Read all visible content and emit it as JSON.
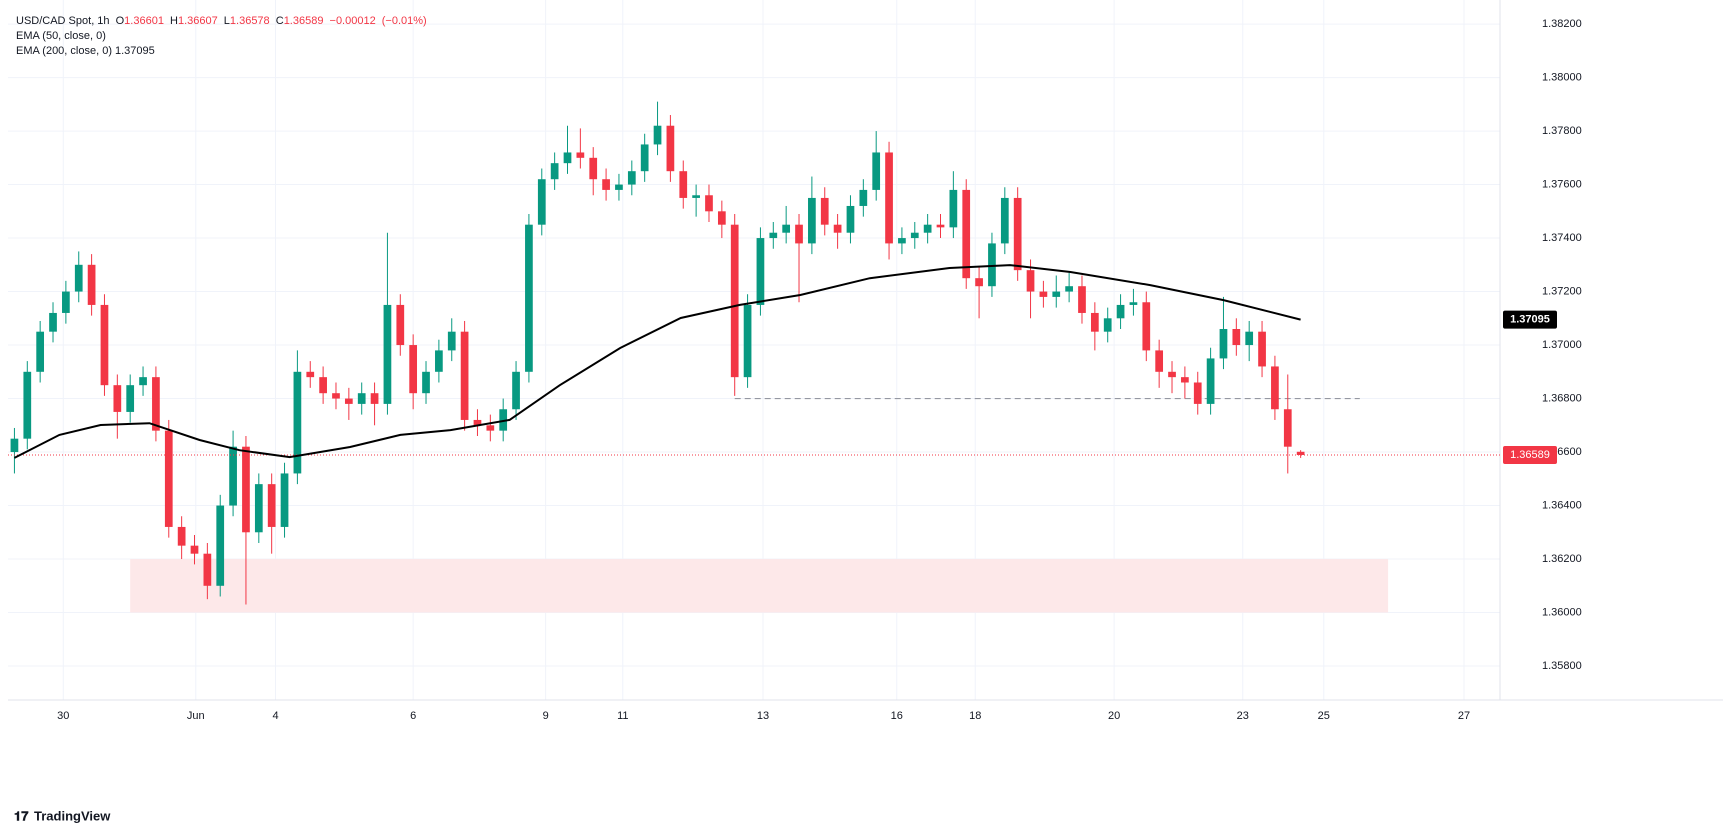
{
  "chart_data": {
    "type": "candlestick",
    "symbol": "USD/CAD Spot, 1h",
    "ohlc_labels": [
      "O",
      "H",
      "L",
      "C"
    ],
    "change": {
      "value": -0.00012,
      "label": "−0.00012"
    },
    "change_percent": {
      "value": -0.01,
      "label": "(−0.01%)"
    },
    "up_color": "#089981",
    "down_color": "#f23645",
    "open": [
      1.366,
      1.3665,
      1.369,
      1.3705,
      1.3712,
      1.372,
      1.373,
      1.3715,
      1.3685,
      1.3675,
      1.3685,
      1.3688,
      1.3668,
      1.3632,
      1.3625,
      1.3622,
      1.361,
      1.364,
      1.3662,
      1.363,
      1.3648,
      1.3632,
      1.3652,
      1.369,
      1.3688,
      1.3682,
      1.368,
      1.3678,
      1.3682,
      1.3678,
      1.3715,
      1.37,
      1.3682,
      1.369,
      1.3698,
      1.3705,
      1.3672,
      1.367,
      1.3668,
      1.3676,
      1.369,
      1.3745,
      1.3762,
      1.3768,
      1.3772,
      1.377,
      1.3762,
      1.3758,
      1.376,
      1.3765,
      1.3775,
      1.3782,
      1.3765,
      1.3755,
      1.3756,
      1.375,
      1.3745,
      1.3688,
      1.3715,
      1.374,
      1.3742,
      1.3745,
      1.3738,
      1.3755,
      1.3745,
      1.3742,
      1.3752,
      1.3758,
      1.3772,
      1.3738,
      1.374,
      1.3742,
      1.3745,
      1.3744,
      1.3758,
      1.3725,
      1.3722,
      1.3738,
      1.3755,
      1.3728,
      1.372,
      1.3718,
      1.372,
      1.3722,
      1.3712,
      1.3705,
      1.371,
      1.3715,
      1.3716,
      1.3698,
      1.369,
      1.3688,
      1.3686,
      1.3678,
      1.3695,
      1.3706,
      1.37,
      1.3705,
      1.3692,
      1.3676,
      1.36601
    ],
    "high": [
      1.3669,
      1.3694,
      1.3709,
      1.3716,
      1.3724,
      1.3735,
      1.3734,
      1.3719,
      1.3689,
      1.3689,
      1.3692,
      1.3692,
      1.3672,
      1.3636,
      1.3629,
      1.3626,
      1.3644,
      1.3668,
      1.3666,
      1.3652,
      1.3652,
      1.3656,
      1.3698,
      1.3694,
      1.3692,
      1.3686,
      1.3684,
      1.3686,
      1.3686,
      1.3742,
      1.3719,
      1.3704,
      1.3694,
      1.3702,
      1.371,
      1.3709,
      1.3676,
      1.3674,
      1.368,
      1.3694,
      1.3749,
      1.3766,
      1.3772,
      1.3782,
      1.3781,
      1.3774,
      1.3766,
      1.3764,
      1.3769,
      1.3779,
      1.3791,
      1.3786,
      1.3769,
      1.376,
      1.376,
      1.3754,
      1.3749,
      1.3719,
      1.3744,
      1.3746,
      1.3752,
      1.3749,
      1.3763,
      1.3759,
      1.3749,
      1.3756,
      1.3762,
      1.378,
      1.3776,
      1.3744,
      1.3746,
      1.3749,
      1.3749,
      1.3765,
      1.3762,
      1.3729,
      1.3742,
      1.3759,
      1.3759,
      1.3732,
      1.3724,
      1.3726,
      1.3727,
      1.3726,
      1.3716,
      1.3714,
      1.3719,
      1.3721,
      1.372,
      1.3702,
      1.3694,
      1.3692,
      1.369,
      1.3699,
      1.3718,
      1.371,
      1.3709,
      1.3709,
      1.3696,
      1.3689,
      1.36607
    ],
    "low": [
      1.3652,
      1.3661,
      1.3686,
      1.3701,
      1.3708,
      1.3716,
      1.3711,
      1.3681,
      1.3665,
      1.3671,
      1.3681,
      1.3664,
      1.3628,
      1.362,
      1.3618,
      1.3605,
      1.3606,
      1.3636,
      1.3603,
      1.3626,
      1.3622,
      1.3628,
      1.3648,
      1.3684,
      1.3678,
      1.3676,
      1.3672,
      1.3674,
      1.367,
      1.3674,
      1.3696,
      1.3676,
      1.3678,
      1.3686,
      1.3694,
      1.3668,
      1.3666,
      1.3664,
      1.3664,
      1.3672,
      1.3686,
      1.3741,
      1.3758,
      1.3764,
      1.3766,
      1.3756,
      1.3754,
      1.3754,
      1.3756,
      1.3761,
      1.3771,
      1.3761,
      1.3751,
      1.3748,
      1.3746,
      1.374,
      1.3681,
      1.3684,
      1.3711,
      1.3736,
      1.3738,
      1.3716,
      1.3734,
      1.3741,
      1.3736,
      1.3738,
      1.3748,
      1.3754,
      1.3732,
      1.3734,
      1.3736,
      1.3738,
      1.374,
      1.374,
      1.3721,
      1.371,
      1.3718,
      1.3734,
      1.3724,
      1.371,
      1.3714,
      1.3714,
      1.3716,
      1.3708,
      1.3698,
      1.3701,
      1.3706,
      1.3711,
      1.3694,
      1.3684,
      1.3682,
      1.368,
      1.3674,
      1.3674,
      1.3691,
      1.3696,
      1.3694,
      1.3688,
      1.3672,
      1.3652,
      1.36578
    ],
    "close": [
      1.3665,
      1.369,
      1.3705,
      1.3712,
      1.372,
      1.373,
      1.3715,
      1.3685,
      1.3675,
      1.3685,
      1.3688,
      1.3668,
      1.3632,
      1.3625,
      1.3622,
      1.361,
      1.364,
      1.3662,
      1.363,
      1.3648,
      1.3632,
      1.3652,
      1.369,
      1.3688,
      1.3682,
      1.368,
      1.3678,
      1.3682,
      1.3678,
      1.3715,
      1.37,
      1.3682,
      1.369,
      1.3698,
      1.3705,
      1.3672,
      1.367,
      1.3668,
      1.3676,
      1.369,
      1.3745,
      1.3762,
      1.3768,
      1.3772,
      1.377,
      1.3762,
      1.3758,
      1.376,
      1.3765,
      1.3775,
      1.3782,
      1.3765,
      1.3755,
      1.3756,
      1.375,
      1.3745,
      1.3688,
      1.3715,
      1.374,
      1.3742,
      1.3745,
      1.3738,
      1.3755,
      1.3745,
      1.3742,
      1.3752,
      1.3758,
      1.3772,
      1.3738,
      1.374,
      1.3742,
      1.3745,
      1.3744,
      1.3758,
      1.3725,
      1.3722,
      1.3738,
      1.3755,
      1.3728,
      1.372,
      1.3718,
      1.372,
      1.3722,
      1.3712,
      1.3705,
      1.371,
      1.3715,
      1.3716,
      1.3698,
      1.369,
      1.3688,
      1.3686,
      1.3678,
      1.3695,
      1.3706,
      1.37,
      1.3705,
      1.3692,
      1.3676,
      1.3662,
      1.36589
    ],
    "ema_50": {
      "name": "EMA (50, close, 0)"
    },
    "ema_200": {
      "name": "EMA (200, close, 0)",
      "color": "#000000",
      "x": [
        0,
        3.5,
        6.7,
        10.5,
        14.4,
        17.5,
        21.4,
        26.1,
        30.0,
        33.9,
        38.5,
        42.4,
        47.1,
        51.8,
        56.4,
        61.1,
        66.5,
        72.7,
        77.4,
        82.1,
        88.3,
        94.0,
        100
      ],
      "values": [
        1.36578,
        1.36664,
        1.36701,
        1.36708,
        1.36645,
        1.36607,
        1.36581,
        1.36619,
        1.36664,
        1.36682,
        1.3672,
        1.3685,
        1.36989,
        1.37101,
        1.3715,
        1.37187,
        1.3725,
        1.37288,
        1.37299,
        1.37273,
        1.37224,
        1.37168,
        1.37095
      ]
    },
    "reference_line": {
      "value": 1.368,
      "x": [
        56.0,
        104.6
      ],
      "color": "#9598a1"
    },
    "zone": {
      "low": 1.36,
      "high": 1.362,
      "x": [
        9.0,
        106.8
      ],
      "color": "#fde8e9"
    },
    "xlim": [
      -0.5,
      115.5
    ],
    "ylim": [
      1.35673,
      1.3829
    ],
    "xticks": [
      {
        "value": 3.8,
        "label": "30"
      },
      {
        "value": 14.1,
        "label": "Jun"
      },
      {
        "value": 20.3,
        "label": "4"
      },
      {
        "value": 31.0,
        "label": "6"
      },
      {
        "value": 41.3,
        "label": "9"
      },
      {
        "value": 47.3,
        "label": "11"
      },
      {
        "value": 58.2,
        "label": "13"
      },
      {
        "value": 68.6,
        "label": "16"
      },
      {
        "value": 74.7,
        "label": "18"
      },
      {
        "value": 85.5,
        "label": "20"
      },
      {
        "value": 95.5,
        "label": "23"
      },
      {
        "value": 101.8,
        "label": "25"
      },
      {
        "value": 112.7,
        "label": "27"
      }
    ],
    "yticks": [
      {
        "value": 1.358,
        "label": "1.35800"
      },
      {
        "value": 1.36,
        "label": "1.36000"
      },
      {
        "value": 1.362,
        "label": "1.36200"
      },
      {
        "value": 1.364,
        "label": "1.36400"
      },
      {
        "value": 1.366,
        "label": "1.36600"
      },
      {
        "value": 1.368,
        "label": "1.36800"
      },
      {
        "value": 1.37,
        "label": "1.37000"
      },
      {
        "value": 1.372,
        "label": "1.37200"
      },
      {
        "value": 1.374,
        "label": "1.37400"
      },
      {
        "value": 1.376,
        "label": "1.37600"
      },
      {
        "value": 1.378,
        "label": "1.37800"
      },
      {
        "value": 1.38,
        "label": "1.38000"
      },
      {
        "value": 1.382,
        "label": "1.38200"
      }
    ],
    "grid": true,
    "brand": "TradingView"
  }
}
